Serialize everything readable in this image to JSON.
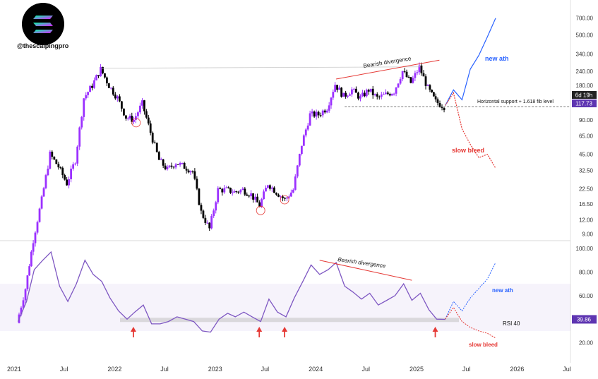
{
  "watermark": {
    "handle": "@thescalpingpro",
    "logo": "solana-logo"
  },
  "chart_data": [
    {
      "type": "candlestick",
      "scale": "log",
      "ylim": [
        8,
        900
      ],
      "y_ticks": [
        "700.00",
        "500.00",
        "340.00",
        "240.00",
        "180.00",
        "130.00",
        "90.00",
        "65.00",
        "45.00",
        "32.50",
        "22.50",
        "16.50",
        "12.00",
        "9.00"
      ],
      "last_price": "117.73",
      "countdown": "6d 19h",
      "colors": {
        "up": "#9b30ff",
        "down": "#000000",
        "projection_up": "#2962ff",
        "projection_down": "#e53935",
        "divergence": "#e53935"
      },
      "annotations": {
        "bearish_divergence": "Bearish divergence",
        "horizontal_support": "Horizontal support + 1.618 fib level",
        "new_ath": "new ath",
        "slow_bleed": "slow bleed"
      },
      "series": [
        {
          "date": "2021-01",
          "price": 1.5
        },
        {
          "date": "2021-02",
          "price": 3
        },
        {
          "date": "2021-03",
          "price": 8
        },
        {
          "date": "2021-04",
          "price": 18
        },
        {
          "date": "2021-05",
          "price": 45
        },
        {
          "date": "2021-06",
          "price": 35
        },
        {
          "date": "2021-07",
          "price": 25
        },
        {
          "date": "2021-08",
          "price": 40
        },
        {
          "date": "2021-09",
          "price": 140
        },
        {
          "date": "2021-10",
          "price": 180
        },
        {
          "date": "2021-11",
          "price": 250
        },
        {
          "date": "2021-12",
          "price": 180
        },
        {
          "date": "2022-01",
          "price": 140
        },
        {
          "date": "2022-02",
          "price": 95
        },
        {
          "date": "2022-03",
          "price": 90
        },
        {
          "date": "2022-04",
          "price": 125
        },
        {
          "date": "2022-05",
          "price": 70
        },
        {
          "date": "2022-06",
          "price": 40
        },
        {
          "date": "2022-07",
          "price": 33
        },
        {
          "date": "2022-08",
          "price": 38
        },
        {
          "date": "2022-09",
          "price": 35
        },
        {
          "date": "2022-10",
          "price": 32
        },
        {
          "date": "2022-11",
          "price": 14
        },
        {
          "date": "2022-12",
          "price": 10
        },
        {
          "date": "2023-01",
          "price": 22
        },
        {
          "date": "2023-02",
          "price": 22
        },
        {
          "date": "2023-03",
          "price": 21
        },
        {
          "date": "2023-04",
          "price": 22
        },
        {
          "date": "2023-05",
          "price": 20
        },
        {
          "date": "2023-06",
          "price": 16
        },
        {
          "date": "2023-07",
          "price": 25
        },
        {
          "date": "2023-08",
          "price": 21
        },
        {
          "date": "2023-09",
          "price": 18
        },
        {
          "date": "2023-10",
          "price": 22
        },
        {
          "date": "2023-11",
          "price": 55
        },
        {
          "date": "2023-12",
          "price": 100
        },
        {
          "date": "2024-01",
          "price": 100
        },
        {
          "date": "2024-02",
          "price": 115
        },
        {
          "date": "2024-03",
          "price": 185
        },
        {
          "date": "2024-04",
          "price": 145
        },
        {
          "date": "2024-05",
          "price": 165
        },
        {
          "date": "2024-06",
          "price": 140
        },
        {
          "date": "2024-07",
          "price": 165
        },
        {
          "date": "2024-08",
          "price": 140
        },
        {
          "date": "2024-09",
          "price": 150
        },
        {
          "date": "2024-10",
          "price": 160
        },
        {
          "date": "2024-11",
          "price": 240
        },
        {
          "date": "2024-12",
          "price": 190
        },
        {
          "date": "2025-01",
          "price": 260
        },
        {
          "date": "2025-02",
          "price": 170
        },
        {
          "date": "2025-03",
          "price": 130
        },
        {
          "date": "2025-04",
          "price": 117.73
        }
      ],
      "projection_up": [
        {
          "date": "2025-04",
          "price": 120
        },
        {
          "date": "2025-05",
          "price": 165
        },
        {
          "date": "2025-06",
          "price": 135
        },
        {
          "date": "2025-07",
          "price": 250
        },
        {
          "date": "2025-08",
          "price": 330
        },
        {
          "date": "2025-09",
          "price": 480
        },
        {
          "date": "2025-10",
          "price": 700
        }
      ],
      "projection_down": [
        {
          "date": "2025-04",
          "price": 120
        },
        {
          "date": "2025-05",
          "price": 155
        },
        {
          "date": "2025-06",
          "price": 75
        },
        {
          "date": "2025-07",
          "price": 55
        },
        {
          "date": "2025-08",
          "price": 42
        },
        {
          "date": "2025-09",
          "price": 45
        },
        {
          "date": "2025-10",
          "price": 34
        }
      ]
    },
    {
      "type": "line",
      "name": "RSI",
      "ylim": [
        15,
        100
      ],
      "y_ticks": [
        "100.00",
        "80.00",
        "60.00",
        "40.00",
        "20.00"
      ],
      "last_value": "39.86",
      "rsi_level_label": "RSI 40",
      "annotations": {
        "bearish_divergence": "Bearish divergence",
        "new_ath": "new ath",
        "slow_bleed": "slow bleed"
      },
      "series": [
        {
          "date": "2021-01",
          "value": 38
        },
        {
          "date": "2021-02",
          "value": 55
        },
        {
          "date": "2021-03",
          "value": 82
        },
        {
          "date": "2021-04",
          "value": 90
        },
        {
          "date": "2021-05",
          "value": 97
        },
        {
          "date": "2021-06",
          "value": 68
        },
        {
          "date": "2021-07",
          "value": 55
        },
        {
          "date": "2021-08",
          "value": 70
        },
        {
          "date": "2021-09",
          "value": 90
        },
        {
          "date": "2021-10",
          "value": 78
        },
        {
          "date": "2021-11",
          "value": 72
        },
        {
          "date": "2021-12",
          "value": 58
        },
        {
          "date": "2022-01",
          "value": 47
        },
        {
          "date": "2022-02",
          "value": 40
        },
        {
          "date": "2022-03",
          "value": 46
        },
        {
          "date": "2022-04",
          "value": 52
        },
        {
          "date": "2022-05",
          "value": 36
        },
        {
          "date": "2022-06",
          "value": 36
        },
        {
          "date": "2022-07",
          "value": 38
        },
        {
          "date": "2022-08",
          "value": 42
        },
        {
          "date": "2022-09",
          "value": 40
        },
        {
          "date": "2022-10",
          "value": 38
        },
        {
          "date": "2022-11",
          "value": 30
        },
        {
          "date": "2022-12",
          "value": 29
        },
        {
          "date": "2023-01",
          "value": 40
        },
        {
          "date": "2023-02",
          "value": 45
        },
        {
          "date": "2023-03",
          "value": 42
        },
        {
          "date": "2023-04",
          "value": 46
        },
        {
          "date": "2023-05",
          "value": 42
        },
        {
          "date": "2023-06",
          "value": 38
        },
        {
          "date": "2023-07",
          "value": 57
        },
        {
          "date": "2023-08",
          "value": 46
        },
        {
          "date": "2023-09",
          "value": 42
        },
        {
          "date": "2023-10",
          "value": 58
        },
        {
          "date": "2023-11",
          "value": 72
        },
        {
          "date": "2023-12",
          "value": 86
        },
        {
          "date": "2024-01",
          "value": 78
        },
        {
          "date": "2024-02",
          "value": 82
        },
        {
          "date": "2024-03",
          "value": 88
        },
        {
          "date": "2024-04",
          "value": 68
        },
        {
          "date": "2024-05",
          "value": 63
        },
        {
          "date": "2024-06",
          "value": 57
        },
        {
          "date": "2024-07",
          "value": 62
        },
        {
          "date": "2024-08",
          "value": 52
        },
        {
          "date": "2024-09",
          "value": 56
        },
        {
          "date": "2024-10",
          "value": 60
        },
        {
          "date": "2024-11",
          "value": 70
        },
        {
          "date": "2024-12",
          "value": 56
        },
        {
          "date": "2025-01",
          "value": 62
        },
        {
          "date": "2025-02",
          "value": 48
        },
        {
          "date": "2025-03",
          "value": 40
        },
        {
          "date": "2025-04",
          "value": 39.86
        }
      ],
      "projection_up": [
        {
          "date": "2025-04",
          "value": 40
        },
        {
          "date": "2025-05",
          "value": 55
        },
        {
          "date": "2025-06",
          "value": 47
        },
        {
          "date": "2025-07",
          "value": 58
        },
        {
          "date": "2025-08",
          "value": 66
        },
        {
          "date": "2025-09",
          "value": 74
        },
        {
          "date": "2025-10",
          "value": 88
        }
      ],
      "projection_down": [
        {
          "date": "2025-04",
          "value": 40
        },
        {
          "date": "2025-05",
          "value": 50
        },
        {
          "date": "2025-06",
          "value": 38
        },
        {
          "date": "2025-07",
          "value": 33
        },
        {
          "date": "2025-08",
          "value": 30
        },
        {
          "date": "2025-09",
          "value": 28
        },
        {
          "date": "2025-10",
          "value": 24
        }
      ]
    }
  ],
  "x_axis": {
    "ticks": [
      "2021",
      "Jul",
      "2022",
      "Jul",
      "2023",
      "Jul",
      "2024",
      "Jul",
      "2025",
      "Jul",
      "2026",
      "Jul"
    ]
  },
  "rsi_40_arrows": [
    "2022-03",
    "2023-06",
    "2023-09",
    "2025-03"
  ]
}
